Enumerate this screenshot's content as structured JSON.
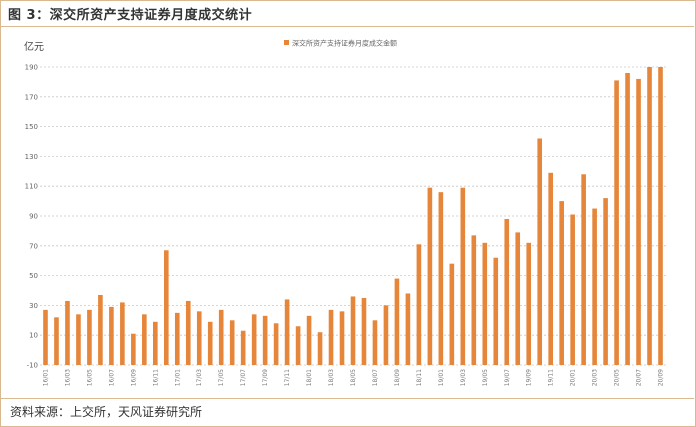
{
  "figure": {
    "title": "图 3：深交所资产支持证券月度成交统计",
    "source": "资料来源：上交所，天风证券研究所"
  },
  "chart_data": {
    "type": "bar",
    "ylabel": "亿元",
    "ylim": [
      -10,
      190
    ],
    "yticks": [
      -10,
      10,
      30,
      50,
      70,
      90,
      110,
      130,
      150,
      170,
      190
    ],
    "legend": "top-center",
    "grid": "horizontal-dashed",
    "bar_color": "#E5863A",
    "series": [
      {
        "name": "深交所资产支持证券月度成交金额",
        "values": [
          27,
          22,
          33,
          24,
          27,
          37,
          29,
          32,
          11,
          24,
          19,
          67,
          25,
          33,
          26,
          19,
          27,
          20,
          13,
          24,
          23,
          18,
          34,
          16,
          23,
          12,
          27,
          26,
          36,
          35,
          20,
          30,
          48,
          38,
          71,
          109,
          106,
          58,
          109,
          77,
          72,
          62,
          88,
          79,
          72,
          142,
          119,
          100,
          91,
          118,
          95,
          102,
          181,
          186,
          182,
          190,
          190
        ]
      }
    ],
    "xtick_labels": [
      "16/01",
      "16/03",
      "16/05",
      "16/07",
      "16/09",
      "16/11",
      "17/01",
      "17/03",
      "17/05",
      "17/07",
      "17/09",
      "17/11",
      "18/01",
      "18/03",
      "18/05",
      "18/07",
      "18/09",
      "18/11",
      "19/01",
      "19/03",
      "19/05",
      "19/07",
      "19/09",
      "19/11",
      "20/01",
      "20/03",
      "20/05",
      "20/07",
      "20/09"
    ]
  }
}
